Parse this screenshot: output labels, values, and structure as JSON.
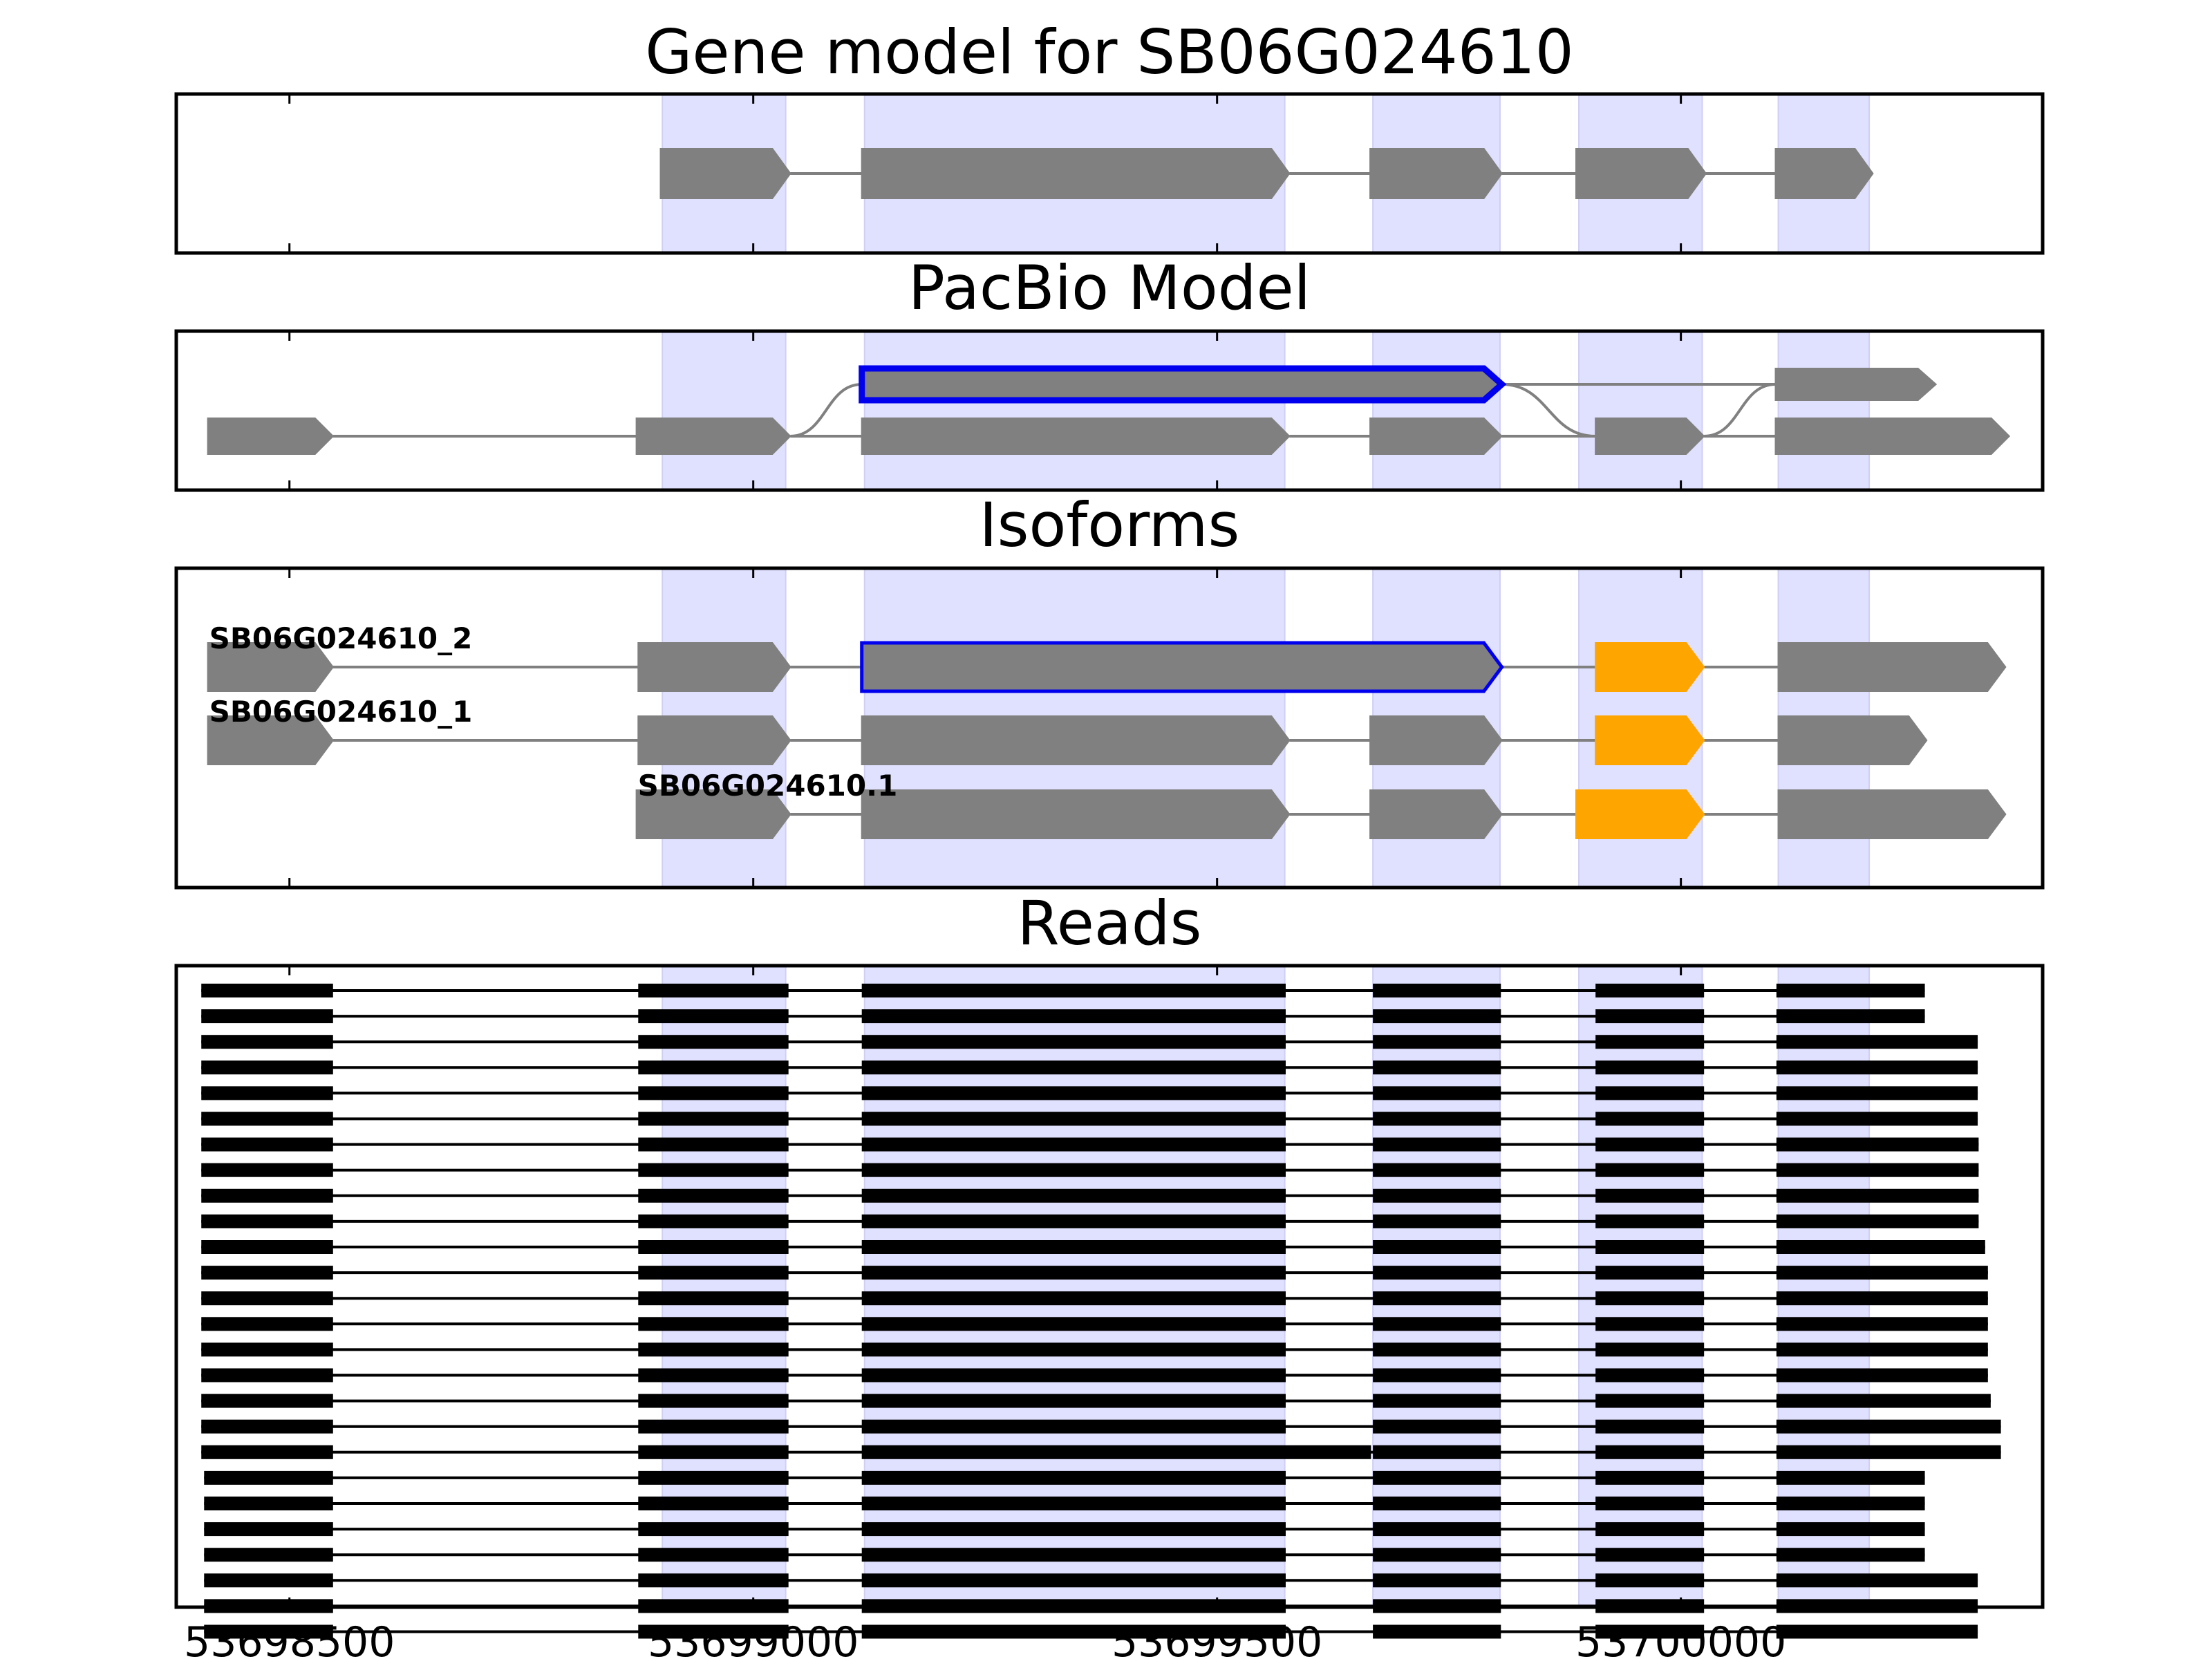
{
  "colors": {
    "exon_band": "#e0e0ff",
    "exon": "#808080",
    "highlight_outline": "#0000ee",
    "utr_exon": "#ffa500",
    "read": "#000000",
    "intron": "#808080"
  },
  "x_axis": {
    "range": [
      53698378,
      53700390
    ],
    "ticks": [
      53698500,
      53699000,
      53699500,
      53700000
    ],
    "tick_labels": [
      "53698500",
      "53699000",
      "53699500",
      "53700000"
    ]
  },
  "exon_bands": [
    [
      53698902,
      53699035
    ],
    [
      53699120,
      53699573
    ],
    [
      53699668,
      53699805
    ],
    [
      53699890,
      53700023
    ],
    [
      53700105,
      53700203
    ]
  ],
  "panels": [
    {
      "title": "Gene model for SB06G024610",
      "tracks": [
        {
          "label": "",
          "exons": [
            [
              53698900,
              53699040,
              "gray"
            ],
            [
              53699117,
              53699578,
              "gray"
            ],
            [
              53699665,
              53699807,
              "gray"
            ],
            [
              53699887,
              53700027,
              "gray"
            ],
            [
              53700102,
              53700207,
              "gray"
            ]
          ]
        }
      ]
    },
    {
      "title": "PacBio Model",
      "tracks": [
        {
          "label": "",
          "exons": [
            [
              53698412,
              53698547,
              "gray"
            ],
            [
              53698874,
              53699040,
              "gray"
            ],
            [
              53699117,
              53699578,
              "gray"
            ],
            [
              53699665,
              53699807,
              "gray"
            ],
            [
              53699908,
              53700025,
              "gray"
            ],
            [
              53700102,
              53700354,
              "gray"
            ]
          ]
        },
        {
          "label": "",
          "exons": [
            [
              53699117,
              53699807,
              "highlight"
            ],
            [
              53700102,
              53700275,
              "gray"
            ]
          ]
        }
      ]
    },
    {
      "title": "Isoforms",
      "tracks": [
        {
          "label": "SB06G024610_2",
          "exons": [
            [
              53698412,
              53698547,
              "gray"
            ],
            [
              53698876,
              53699040,
              "gray"
            ],
            [
              53699117,
              53699807,
              "highlight"
            ],
            [
              53699908,
              53700025,
              "utr"
            ],
            [
              53700105,
              53700350,
              "gray"
            ]
          ]
        },
        {
          "label": "SB06G024610_1",
          "exons": [
            [
              53698412,
              53698547,
              "gray"
            ],
            [
              53698876,
              53699040,
              "gray"
            ],
            [
              53699117,
              53699578,
              "gray"
            ],
            [
              53699665,
              53699807,
              "gray"
            ],
            [
              53699908,
              53700025,
              "utr"
            ],
            [
              53700105,
              53700265,
              "gray"
            ]
          ]
        },
        {
          "label": "SB06G024610.1",
          "exons": [
            [
              53698874,
              53699040,
              "gray"
            ],
            [
              53699117,
              53699578,
              "gray"
            ],
            [
              53699665,
              53699807,
              "gray"
            ],
            [
              53699887,
              53700025,
              "utr"
            ],
            [
              53700105,
              53700350,
              "gray"
            ]
          ]
        }
      ]
    },
    {
      "title": "Reads",
      "reads": [
        {
          "start": 53698405,
          "end": 53700263
        },
        {
          "start": 53698405,
          "end": 53700263
        },
        {
          "start": 53698405,
          "end": 53700320
        },
        {
          "start": 53698405,
          "end": 53700320
        },
        {
          "start": 53698405,
          "end": 53700320
        },
        {
          "start": 53698405,
          "end": 53700320
        },
        {
          "start": 53698405,
          "end": 53700321
        },
        {
          "start": 53698405,
          "end": 53700321
        },
        {
          "start": 53698405,
          "end": 53700321
        },
        {
          "start": 53698405,
          "end": 53700321
        },
        {
          "start": 53698405,
          "end": 53700328
        },
        {
          "start": 53698405,
          "end": 53700331
        },
        {
          "start": 53698405,
          "end": 53700331
        },
        {
          "start": 53698405,
          "end": 53700331
        },
        {
          "start": 53698405,
          "end": 53700331
        },
        {
          "start": 53698405,
          "end": 53700331
        },
        {
          "start": 53698405,
          "end": 53700334
        },
        {
          "start": 53698405,
          "end": 53700345
        },
        {
          "start": 53698405,
          "end": 53700345,
          "alt_exon3_end": 53699666
        },
        {
          "start": 53698408,
          "end": 53700263
        },
        {
          "start": 53698408,
          "end": 53700263
        },
        {
          "start": 53698408,
          "end": 53700263
        },
        {
          "start": 53698408,
          "end": 53700263
        },
        {
          "start": 53698408,
          "end": 53700320
        },
        {
          "start": 53698408,
          "end": 53700320
        },
        {
          "start": 53698408,
          "end": 53700320
        }
      ],
      "read_exons": [
        [
          53698405,
          53698547
        ],
        [
          53698876,
          53699038
        ],
        [
          53699117,
          53699574
        ],
        [
          53699668,
          53699806
        ],
        [
          53699908,
          53700025
        ],
        [
          53700103,
          53700263
        ]
      ]
    }
  ]
}
